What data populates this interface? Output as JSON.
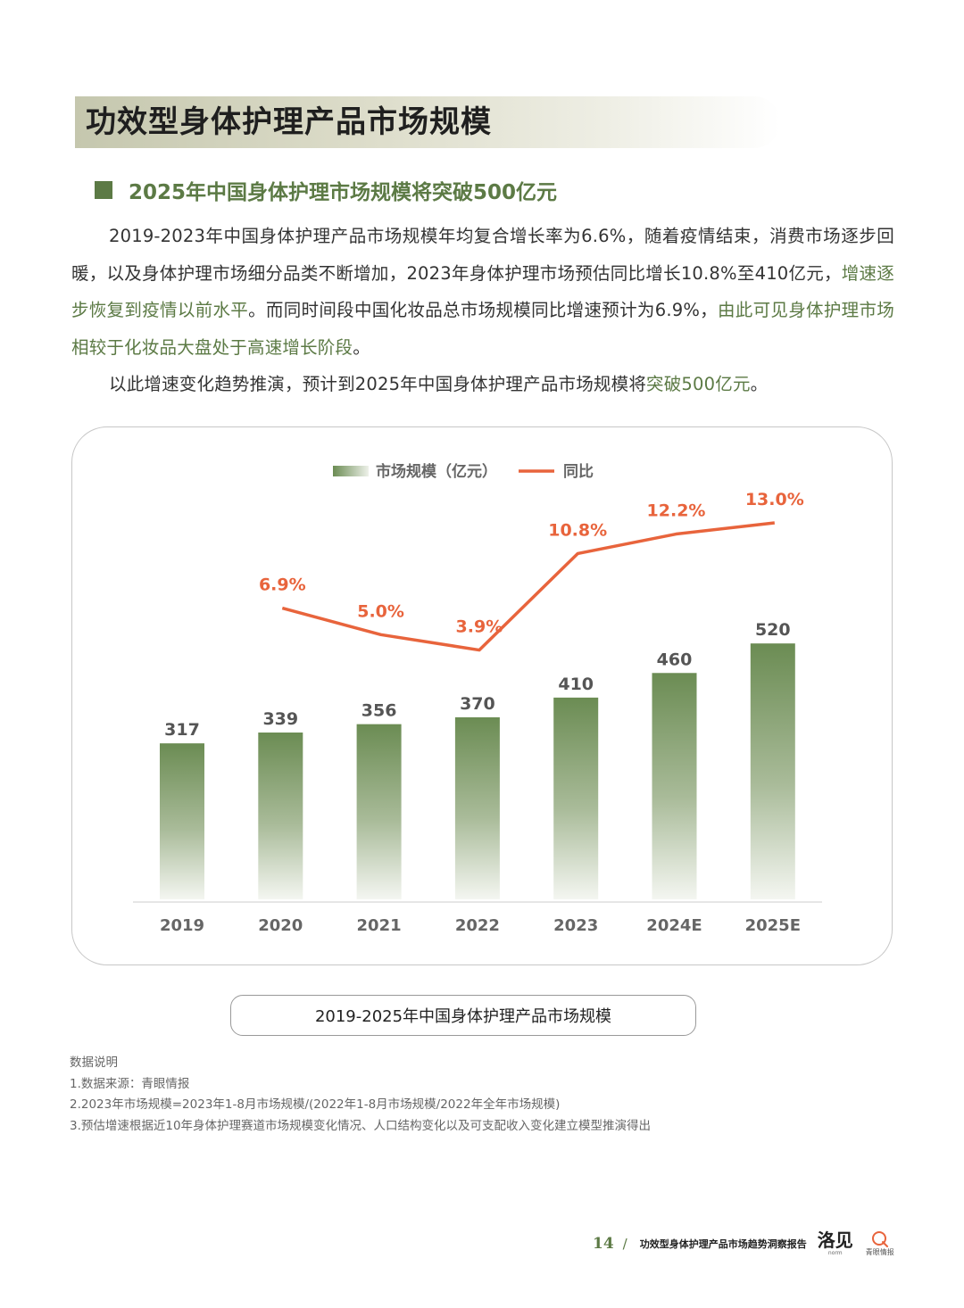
{
  "page_title": "功效型身体护理产品市场规模",
  "section_title": "2025年中国身体护理市场规模将突破500亿元",
  "paragraph1": {
    "part1": "2019-2023年中国身体护理产品市场规模年均复合增长率为6.6%，随着疫情结束，消费市场逐步回暖，以及身体护理市场细分品类不断增加，2023年身体护理市场预估同比增长10.8%至410亿元，",
    "highlight1": "增速逐步恢复到疫情以前水平",
    "part2": "。而同时间段中国化妆品总市场规模同比增速预计为6.9%，",
    "highlight2": "由此可见身体护理市场相较于化妆品大盘处于高速增长阶段",
    "part3": "。"
  },
  "paragraph2": {
    "part1": "以此增速变化趋势推演，预计到2025年中国身体护理产品市场规模将",
    "highlight": "突破500亿元",
    "part2": "。"
  },
  "colors": {
    "bar_top": "#6b8c53",
    "line": "#e8643c",
    "accent": "#5c7a45",
    "axis_text": "#666666",
    "value_text": "#555555"
  },
  "chart_data": {
    "type": "bar",
    "categories": [
      "2019",
      "2020",
      "2021",
      "2022",
      "2023",
      "2024E",
      "2025E"
    ],
    "series": [
      {
        "name": "市场规模（亿元）",
        "type": "bar",
        "values": [
          317,
          339,
          356,
          370,
          410,
          460,
          520
        ]
      },
      {
        "name": "同比",
        "type": "line",
        "values": [
          null,
          6.9,
          5.0,
          3.9,
          10.8,
          12.2,
          13.0
        ]
      }
    ],
    "bar_labels": [
      "317",
      "339",
      "356",
      "370",
      "410",
      "460",
      "520"
    ],
    "line_labels": [
      "",
      "6.9%",
      "5.0%",
      "3.9%",
      "10.8%",
      "12.2%",
      "13.0%"
    ],
    "legend": [
      "市场规模（亿元）",
      "同比"
    ],
    "legend_position": "top-center",
    "bar_ylim": [
      0,
      570
    ],
    "line_ylim": [
      -14,
      16
    ],
    "grid": false,
    "title": "2019-2025年中国身体护理产品市场规模"
  },
  "caption": "2019-2025年中国身体护理产品市场规模",
  "notes": {
    "heading": "数据说明",
    "items": [
      "1.数据来源：青眼情报",
      "2.2023年市场规模=2023年1-8月市场规模/(2022年1-8月市场规模/2022年全年市场规模)",
      "3.预估增速根据近10年身体护理赛道市场规模变化情况、人口结构变化以及可支配收入变化建立模型推演得出"
    ]
  },
  "footer": {
    "page_number": "14",
    "slash": "/",
    "report_title": "功效型身体护理产品市场趋势洞察报告",
    "logo1_mark": "洛见",
    "logo1_sub": "norm",
    "logo2_sub": "青眼情报"
  }
}
